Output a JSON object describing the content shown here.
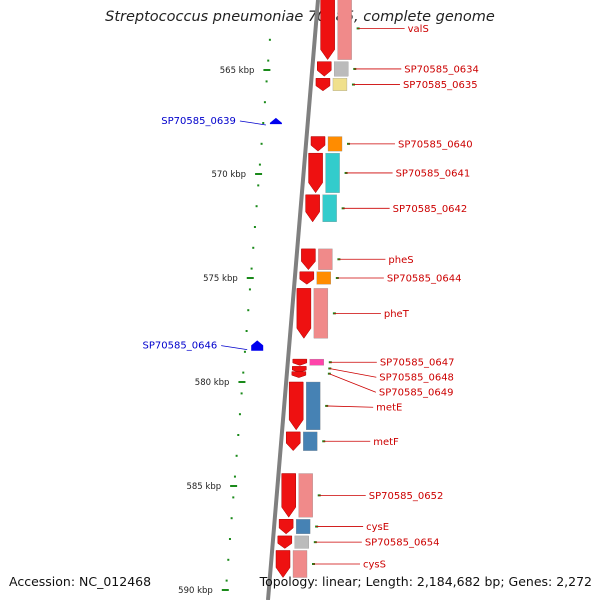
{
  "title": "Streptococcus pneumoniae 70585, complete genome",
  "footer": {
    "accession": "Accession: NC_012468",
    "summary": "Topology: linear; Length: 2,184,682 bp; Genes: 2,272"
  },
  "colors": {
    "axis": "#808080",
    "forward_label": "#cc0000",
    "reverse_label": "#0000cc",
    "tick": "#1a8a1a",
    "cds": "#ee1111"
  },
  "chart_data": {
    "type": "genome-map",
    "ticks": [
      {
        "label": "565 kbp",
        "kbp": 565
      },
      {
        "label": "570 kbp",
        "kbp": 570
      },
      {
        "label": "575 kbp",
        "kbp": 575
      },
      {
        "label": "580 kbp",
        "kbp": 580
      },
      {
        "label": "585 kbp",
        "kbp": 585
      },
      {
        "label": "590 kbp",
        "kbp": 590
      }
    ],
    "forward_genes": [
      {
        "name": "valS",
        "start_kbp": 561.5,
        "end_kbp": 564.5,
        "cog": "#f08a8a"
      },
      {
        "name": "SP70585_0634",
        "start_kbp": 564.6,
        "end_kbp": 565.3,
        "cog": "#bbbbbb"
      },
      {
        "name": "SP70585_0635",
        "start_kbp": 565.4,
        "end_kbp": 566.0,
        "cog": "#f0e08c"
      },
      {
        "name": "SP70585_0640",
        "start_kbp": 568.2,
        "end_kbp": 568.9,
        "cog": "#ff8c00"
      },
      {
        "name": "SP70585_0641",
        "start_kbp": 569.0,
        "end_kbp": 570.9,
        "cog": "#33cccc"
      },
      {
        "name": "SP70585_0642",
        "start_kbp": 571.0,
        "end_kbp": 572.3,
        "cog": "#33cccc"
      },
      {
        "name": "pheS",
        "start_kbp": 573.6,
        "end_kbp": 574.6,
        "cog": "#f08a8a"
      },
      {
        "name": "SP70585_0644",
        "start_kbp": 574.7,
        "end_kbp": 575.3,
        "cog": "#ff8c00"
      },
      {
        "name": "pheT",
        "start_kbp": 575.5,
        "end_kbp": 577.9,
        "cog": "#f08a8a"
      },
      {
        "name": "SP70585_0647",
        "start_kbp": 578.9,
        "end_kbp": 579.2,
        "cog": "#ff44aa"
      },
      {
        "name": "SP70585_0648",
        "start_kbp": 579.25,
        "end_kbp": 579.45,
        "cog": ""
      },
      {
        "name": "SP70585_0649",
        "start_kbp": 579.5,
        "end_kbp": 579.7,
        "cog": ""
      },
      {
        "name": "metE",
        "start_kbp": 580.0,
        "end_kbp": 582.3,
        "cog": "#4682b4"
      },
      {
        "name": "metF",
        "start_kbp": 582.4,
        "end_kbp": 583.3,
        "cog": "#4682b4"
      },
      {
        "name": "SP70585_0652",
        "start_kbp": 584.4,
        "end_kbp": 586.5,
        "cog": "#f08a8a"
      },
      {
        "name": "cysE",
        "start_kbp": 586.6,
        "end_kbp": 587.3,
        "cog": "#4682b4"
      },
      {
        "name": "SP70585_0654",
        "start_kbp": 587.4,
        "end_kbp": 588.0,
        "cog": "#bbbbbb"
      },
      {
        "name": "cysS",
        "start_kbp": 588.1,
        "end_kbp": 589.4,
        "cog": "#f08a8a"
      }
    ],
    "reverse_genes": [
      {
        "name": "SP70585_0639",
        "start_kbp": 567.3,
        "end_kbp": 567.6
      },
      {
        "name": "SP70585_0646",
        "start_kbp": 578.0,
        "end_kbp": 578.5
      }
    ]
  }
}
